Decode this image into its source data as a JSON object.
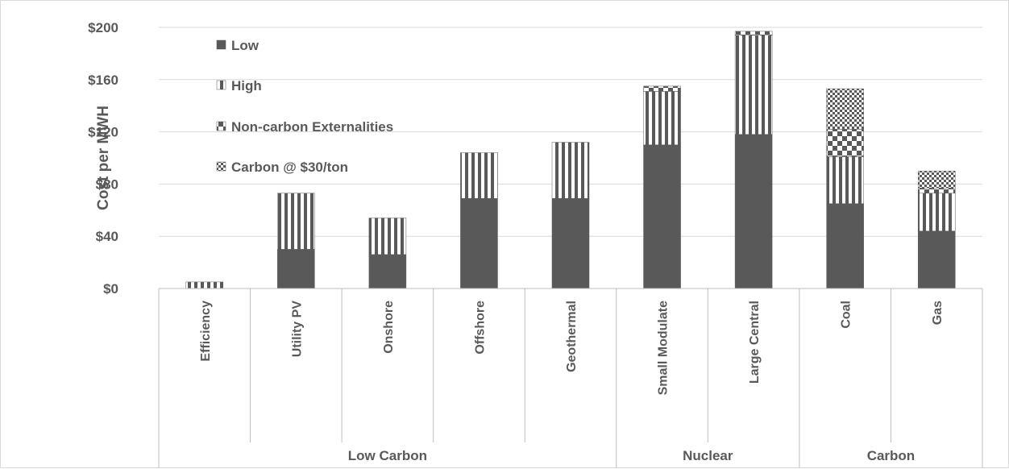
{
  "chart_data": {
    "type": "bar",
    "stacked": true,
    "title": "",
    "xlabel": "",
    "ylabel": "Cost per MWH",
    "ylim": [
      0,
      200
    ],
    "yticks": [
      0,
      40,
      80,
      120,
      160,
      200
    ],
    "ytick_labels": [
      "$0",
      "$40",
      "$80",
      "$120",
      "$160",
      "$200"
    ],
    "grid": true,
    "legend_position": "top-left",
    "categories": [
      "Efficiency",
      "Utility PV",
      "Onshore",
      "Offshore",
      "Geothermal",
      "Small Modulate",
      "Large Central",
      "Coal",
      "Gas"
    ],
    "groups": [
      {
        "name": "Low Carbon",
        "categories": [
          "Efficiency",
          "Utility PV",
          "Onshore",
          "Offshore",
          "Geothermal"
        ]
      },
      {
        "name": "Nuclear",
        "categories": [
          "Small Modulate",
          "Large Central"
        ]
      },
      {
        "name": "Carbon",
        "categories": [
          "Coal",
          "Gas"
        ]
      }
    ],
    "series": [
      {
        "name": "Low",
        "pattern": "solid",
        "color": "#595959",
        "values": [
          0,
          30,
          26,
          69,
          69,
          110,
          118,
          65,
          44
        ]
      },
      {
        "name": "High",
        "pattern": "vertical-stripes",
        "color": "#595959",
        "values": [
          5,
          43,
          28,
          35,
          43,
          41,
          76,
          36,
          29
        ]
      },
      {
        "name": "Non-carbon Externalities",
        "pattern": "checker-small",
        "color": "#595959",
        "values": [
          0,
          0,
          0,
          0,
          0,
          4,
          3,
          21,
          4
        ]
      },
      {
        "name": "Carbon @ $30/ton",
        "pattern": "checker-fine",
        "color": "#595959",
        "values": [
          0,
          0,
          0,
          0,
          0,
          0,
          0,
          31,
          13
        ]
      }
    ]
  }
}
